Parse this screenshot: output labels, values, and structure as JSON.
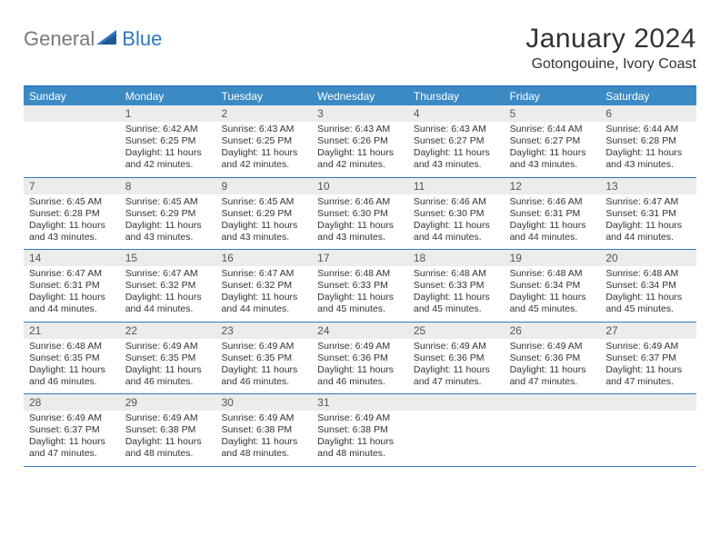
{
  "brand": {
    "general": "General",
    "blue": "Blue"
  },
  "title": "January 2024",
  "location": "Gotongouine, Ivory Coast",
  "colors": {
    "header_bg": "#3b8ac4",
    "border": "#2f78bf",
    "daynum_bg": "#ececec",
    "text": "#333333",
    "header_text": "#ffffff"
  },
  "day_names": [
    "Sunday",
    "Monday",
    "Tuesday",
    "Wednesday",
    "Thursday",
    "Friday",
    "Saturday"
  ],
  "start_offset": 1,
  "days": [
    {
      "n": 1,
      "sunrise": "6:42 AM",
      "sunset": "6:25 PM",
      "daylight": "11 hours and 42 minutes."
    },
    {
      "n": 2,
      "sunrise": "6:43 AM",
      "sunset": "6:25 PM",
      "daylight": "11 hours and 42 minutes."
    },
    {
      "n": 3,
      "sunrise": "6:43 AM",
      "sunset": "6:26 PM",
      "daylight": "11 hours and 42 minutes."
    },
    {
      "n": 4,
      "sunrise": "6:43 AM",
      "sunset": "6:27 PM",
      "daylight": "11 hours and 43 minutes."
    },
    {
      "n": 5,
      "sunrise": "6:44 AM",
      "sunset": "6:27 PM",
      "daylight": "11 hours and 43 minutes."
    },
    {
      "n": 6,
      "sunrise": "6:44 AM",
      "sunset": "6:28 PM",
      "daylight": "11 hours and 43 minutes."
    },
    {
      "n": 7,
      "sunrise": "6:45 AM",
      "sunset": "6:28 PM",
      "daylight": "11 hours and 43 minutes."
    },
    {
      "n": 8,
      "sunrise": "6:45 AM",
      "sunset": "6:29 PM",
      "daylight": "11 hours and 43 minutes."
    },
    {
      "n": 9,
      "sunrise": "6:45 AM",
      "sunset": "6:29 PM",
      "daylight": "11 hours and 43 minutes."
    },
    {
      "n": 10,
      "sunrise": "6:46 AM",
      "sunset": "6:30 PM",
      "daylight": "11 hours and 43 minutes."
    },
    {
      "n": 11,
      "sunrise": "6:46 AM",
      "sunset": "6:30 PM",
      "daylight": "11 hours and 44 minutes."
    },
    {
      "n": 12,
      "sunrise": "6:46 AM",
      "sunset": "6:31 PM",
      "daylight": "11 hours and 44 minutes."
    },
    {
      "n": 13,
      "sunrise": "6:47 AM",
      "sunset": "6:31 PM",
      "daylight": "11 hours and 44 minutes."
    },
    {
      "n": 14,
      "sunrise": "6:47 AM",
      "sunset": "6:31 PM",
      "daylight": "11 hours and 44 minutes."
    },
    {
      "n": 15,
      "sunrise": "6:47 AM",
      "sunset": "6:32 PM",
      "daylight": "11 hours and 44 minutes."
    },
    {
      "n": 16,
      "sunrise": "6:47 AM",
      "sunset": "6:32 PM",
      "daylight": "11 hours and 44 minutes."
    },
    {
      "n": 17,
      "sunrise": "6:48 AM",
      "sunset": "6:33 PM",
      "daylight": "11 hours and 45 minutes."
    },
    {
      "n": 18,
      "sunrise": "6:48 AM",
      "sunset": "6:33 PM",
      "daylight": "11 hours and 45 minutes."
    },
    {
      "n": 19,
      "sunrise": "6:48 AM",
      "sunset": "6:34 PM",
      "daylight": "11 hours and 45 minutes."
    },
    {
      "n": 20,
      "sunrise": "6:48 AM",
      "sunset": "6:34 PM",
      "daylight": "11 hours and 45 minutes."
    },
    {
      "n": 21,
      "sunrise": "6:48 AM",
      "sunset": "6:35 PM",
      "daylight": "11 hours and 46 minutes."
    },
    {
      "n": 22,
      "sunrise": "6:49 AM",
      "sunset": "6:35 PM",
      "daylight": "11 hours and 46 minutes."
    },
    {
      "n": 23,
      "sunrise": "6:49 AM",
      "sunset": "6:35 PM",
      "daylight": "11 hours and 46 minutes."
    },
    {
      "n": 24,
      "sunrise": "6:49 AM",
      "sunset": "6:36 PM",
      "daylight": "11 hours and 46 minutes."
    },
    {
      "n": 25,
      "sunrise": "6:49 AM",
      "sunset": "6:36 PM",
      "daylight": "11 hours and 47 minutes."
    },
    {
      "n": 26,
      "sunrise": "6:49 AM",
      "sunset": "6:36 PM",
      "daylight": "11 hours and 47 minutes."
    },
    {
      "n": 27,
      "sunrise": "6:49 AM",
      "sunset": "6:37 PM",
      "daylight": "11 hours and 47 minutes."
    },
    {
      "n": 28,
      "sunrise": "6:49 AM",
      "sunset": "6:37 PM",
      "daylight": "11 hours and 47 minutes."
    },
    {
      "n": 29,
      "sunrise": "6:49 AM",
      "sunset": "6:38 PM",
      "daylight": "11 hours and 48 minutes."
    },
    {
      "n": 30,
      "sunrise": "6:49 AM",
      "sunset": "6:38 PM",
      "daylight": "11 hours and 48 minutes."
    },
    {
      "n": 31,
      "sunrise": "6:49 AM",
      "sunset": "6:38 PM",
      "daylight": "11 hours and 48 minutes."
    }
  ],
  "labels": {
    "sunrise": "Sunrise:",
    "sunset": "Sunset:",
    "daylight": "Daylight:"
  }
}
